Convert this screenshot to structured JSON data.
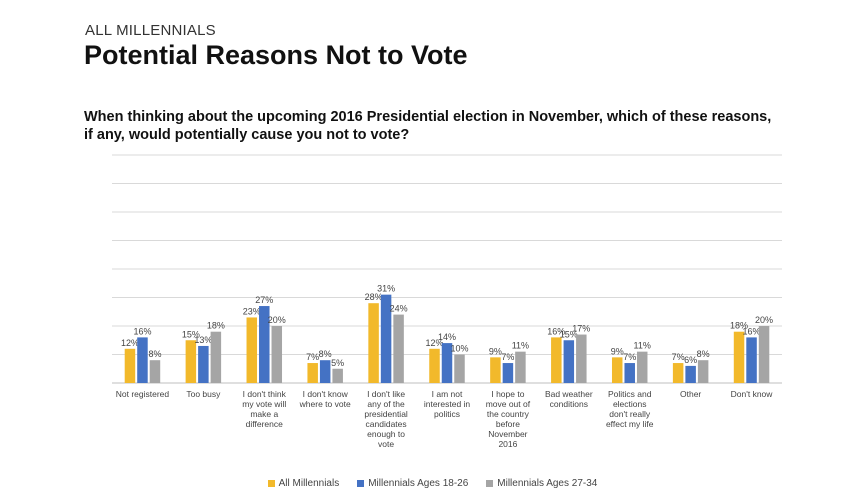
{
  "header": {
    "kicker": "ALL MILLENNIALS",
    "title": "Potential Reasons Not to Vote",
    "question": "When thinking about the upcoming 2016 Presidential election in November, which of these reasons, if any, would potentially cause you not to vote?"
  },
  "colors": {
    "series": [
      "#f2b92b",
      "#4472c4",
      "#a5a5a5"
    ],
    "gridline": "#d9d9d9",
    "axis": "#bfbfbf"
  },
  "chart_data": {
    "type": "bar",
    "title": "Potential Reasons Not to Vote",
    "xlabel": "",
    "ylabel": "",
    "ylim": [
      0,
      80
    ],
    "grid": true,
    "legend_position": "bottom",
    "categories": [
      [
        "Not registered"
      ],
      [
        "Too busy"
      ],
      [
        "I don't think",
        "my vote will",
        "make a",
        "difference"
      ],
      [
        "I don't know",
        "where to vote"
      ],
      [
        "I don't like",
        "any of the",
        "presidential",
        "candidates",
        "enough to",
        "vote"
      ],
      [
        "I am not",
        "interested in",
        "politics"
      ],
      [
        "I hope to",
        "move out of",
        "the country",
        "before",
        "November",
        "2016"
      ],
      [
        "Bad weather",
        "conditions"
      ],
      [
        "Politics and",
        "elections",
        "don't really",
        "effect my life"
      ],
      [
        "Other"
      ],
      [
        "Don't know"
      ]
    ],
    "series": [
      {
        "name": "All Millennials",
        "values": [
          12,
          15,
          23,
          7,
          28,
          12,
          9,
          16,
          9,
          7,
          18
        ]
      },
      {
        "name": "Millennials Ages 18-26",
        "values": [
          16,
          13,
          27,
          8,
          31,
          14,
          7,
          15,
          7,
          6,
          16
        ]
      },
      {
        "name": "Millennials Ages 27-34",
        "values": [
          8,
          18,
          20,
          5,
          24,
          10,
          11,
          17,
          11,
          8,
          20
        ]
      }
    ]
  }
}
